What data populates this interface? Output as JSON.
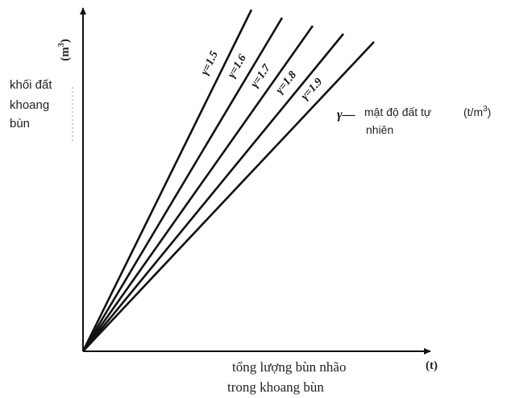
{
  "chart_data": {
    "type": "line",
    "title": "",
    "xlabel": [
      "tổng lượng bùn nhão",
      "trong khoang bùn"
    ],
    "x_unit": "(t)",
    "ylabel": [
      "khối đất",
      "khoang",
      "bùn"
    ],
    "y_unit": {
      "base": "(m",
      "sup": "3",
      "close": ")"
    },
    "legend": {
      "symbol": "γ",
      "dash": "—",
      "text_line1": "mật độ đất tự",
      "unit": {
        "base": "(t/m",
        "sup": "3",
        "close": ")"
      },
      "text_line2": "nhiên"
    },
    "series": [
      {
        "name": "γ=1.5",
        "slope": 1.5
      },
      {
        "name": "γ=1.6",
        "slope": 1.6
      },
      {
        "name": "γ=1.7",
        "slope": 1.7
      },
      {
        "name": "γ=1.8",
        "slope": 1.8
      },
      {
        "name": "γ=1.9",
        "slope": 1.9
      }
    ],
    "grid": false,
    "axis_ticks": false
  }
}
